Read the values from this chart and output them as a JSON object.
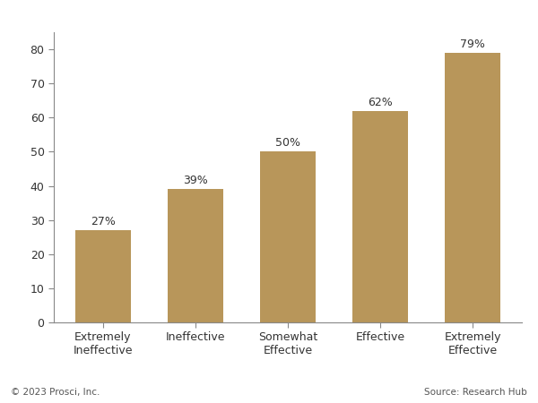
{
  "categories": [
    "Extremely\nIneffective",
    "Ineffective",
    "Somewhat\nEffective",
    "Effective",
    "Extremely\nEffective"
  ],
  "values": [
    27,
    39,
    50,
    62,
    79
  ],
  "labels": [
    "27%",
    "39%",
    "50%",
    "62%",
    "79%"
  ],
  "bar_color": "#B8965A",
  "background_color": "#ffffff",
  "ylim": [
    0,
    85
  ],
  "yticks": [
    0,
    10,
    20,
    30,
    40,
    50,
    60,
    70,
    80
  ],
  "footer_left": "© 2023 Prosci, Inc.",
  "footer_right": "Source: Research Hub",
  "label_fontsize": 9,
  "tick_fontsize": 9,
  "footer_fontsize": 7.5
}
